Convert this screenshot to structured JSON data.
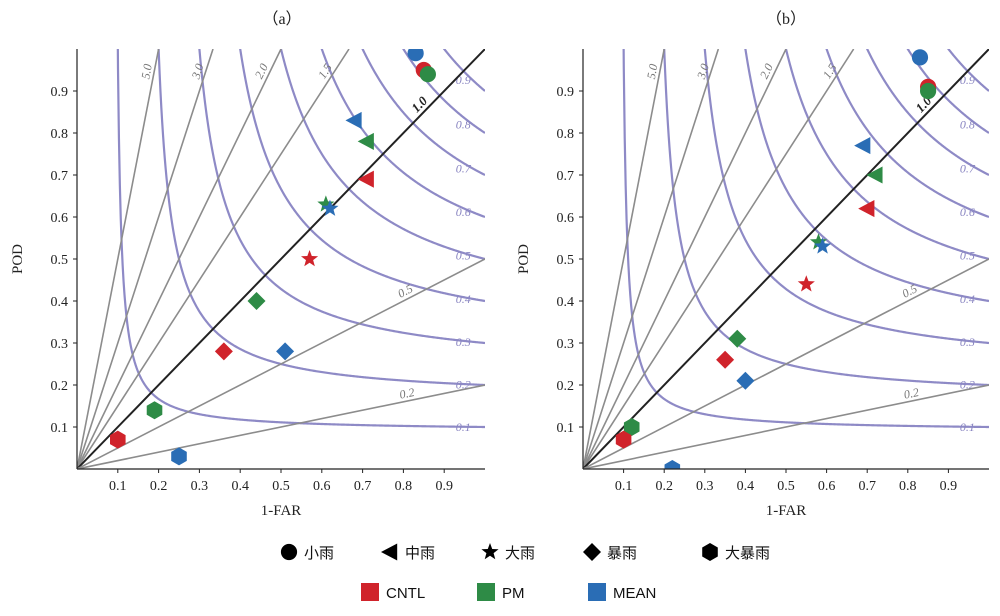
{
  "chart_data": [
    {
      "type": "scatter",
      "subtype": "performance-diagram",
      "title": "（a）",
      "xlabel": "1-FAR",
      "ylabel": "POD",
      "xlim": [
        0,
        1
      ],
      "ylim": [
        0,
        1
      ],
      "xticks": [
        "0.1",
        "0.2",
        "0.3",
        "0.4",
        "0.5",
        "0.6",
        "0.7",
        "0.8",
        "0.9"
      ],
      "yticks": [
        "0.1",
        "0.2",
        "0.3",
        "0.4",
        "0.5",
        "0.6",
        "0.7",
        "0.8",
        "0.9"
      ],
      "bias_lines": [
        {
          "value": 5.0,
          "label": "5.0"
        },
        {
          "value": 3.0,
          "label": "3.0"
        },
        {
          "value": 2.0,
          "label": "2.0"
        },
        {
          "value": 1.5,
          "label": "1.5"
        },
        {
          "value": 1.0,
          "label": "1.0"
        },
        {
          "value": 0.5,
          "label": "0.5"
        },
        {
          "value": 0.2,
          "label": "0.2"
        }
      ],
      "csi_curves": [
        {
          "value": 0.1,
          "label": "0.1"
        },
        {
          "value": 0.2,
          "label": "0.2"
        },
        {
          "value": 0.3,
          "label": "0.3"
        },
        {
          "value": 0.4,
          "label": "0.4"
        },
        {
          "value": 0.5,
          "label": "0.5"
        },
        {
          "value": 0.6,
          "label": "0.6"
        },
        {
          "value": 0.7,
          "label": "0.7"
        },
        {
          "value": 0.8,
          "label": "0.8"
        },
        {
          "value": 0.9,
          "label": "0.9"
        }
      ],
      "points": [
        {
          "model": "MEAN",
          "category": "小雨",
          "x": 0.83,
          "y": 0.99
        },
        {
          "model": "CNTL",
          "category": "小雨",
          "x": 0.85,
          "y": 0.95
        },
        {
          "model": "PM",
          "category": "小雨",
          "x": 0.86,
          "y": 0.94
        },
        {
          "model": "MEAN",
          "category": "中雨",
          "x": 0.68,
          "y": 0.83
        },
        {
          "model": "PM",
          "category": "中雨",
          "x": 0.71,
          "y": 0.78
        },
        {
          "model": "CNTL",
          "category": "中雨",
          "x": 0.71,
          "y": 0.69
        },
        {
          "model": "PM",
          "category": "大雨",
          "x": 0.61,
          "y": 0.63
        },
        {
          "model": "MEAN",
          "category": "大雨",
          "x": 0.62,
          "y": 0.62
        },
        {
          "model": "CNTL",
          "category": "大雨",
          "x": 0.57,
          "y": 0.5
        },
        {
          "model": "PM",
          "category": "暴雨",
          "x": 0.44,
          "y": 0.4
        },
        {
          "model": "CNTL",
          "category": "暴雨",
          "x": 0.36,
          "y": 0.28
        },
        {
          "model": "MEAN",
          "category": "暴雨",
          "x": 0.51,
          "y": 0.28
        },
        {
          "model": "PM",
          "category": "大暴雨",
          "x": 0.19,
          "y": 0.14
        },
        {
          "model": "CNTL",
          "category": "大暴雨",
          "x": 0.1,
          "y": 0.07
        },
        {
          "model": "MEAN",
          "category": "大暴雨",
          "x": 0.25,
          "y": 0.03
        }
      ]
    },
    {
      "type": "scatter",
      "subtype": "performance-diagram",
      "title": "（b）",
      "xlabel": "1-FAR",
      "ylabel": "POD",
      "xlim": [
        0,
        1
      ],
      "ylim": [
        0,
        1
      ],
      "xticks": [
        "0.1",
        "0.2",
        "0.3",
        "0.4",
        "0.5",
        "0.6",
        "0.7",
        "0.8",
        "0.9"
      ],
      "yticks": [
        "0.1",
        "0.2",
        "0.3",
        "0.4",
        "0.5",
        "0.6",
        "0.7",
        "0.8",
        "0.9"
      ],
      "bias_lines": [
        {
          "value": 5.0,
          "label": "5.0"
        },
        {
          "value": 3.0,
          "label": "3.0"
        },
        {
          "value": 2.0,
          "label": "2.0"
        },
        {
          "value": 1.5,
          "label": "1.5"
        },
        {
          "value": 1.0,
          "label": "1.0"
        },
        {
          "value": 0.5,
          "label": "0.5"
        },
        {
          "value": 0.2,
          "label": "0.2"
        }
      ],
      "csi_curves": [
        {
          "value": 0.1,
          "label": "0.1"
        },
        {
          "value": 0.2,
          "label": "0.2"
        },
        {
          "value": 0.3,
          "label": "0.3"
        },
        {
          "value": 0.4,
          "label": "0.4"
        },
        {
          "value": 0.5,
          "label": "0.5"
        },
        {
          "value": 0.6,
          "label": "0.6"
        },
        {
          "value": 0.7,
          "label": "0.7"
        },
        {
          "value": 0.8,
          "label": "0.8"
        },
        {
          "value": 0.9,
          "label": "0.9"
        }
      ],
      "points": [
        {
          "model": "MEAN",
          "category": "小雨",
          "x": 0.83,
          "y": 0.98
        },
        {
          "model": "CNTL",
          "category": "小雨",
          "x": 0.85,
          "y": 0.91
        },
        {
          "model": "PM",
          "category": "小雨",
          "x": 0.85,
          "y": 0.9
        },
        {
          "model": "MEAN",
          "category": "中雨",
          "x": 0.69,
          "y": 0.77
        },
        {
          "model": "PM",
          "category": "中雨",
          "x": 0.72,
          "y": 0.7
        },
        {
          "model": "CNTL",
          "category": "中雨",
          "x": 0.7,
          "y": 0.62
        },
        {
          "model": "PM",
          "category": "大雨",
          "x": 0.58,
          "y": 0.54
        },
        {
          "model": "MEAN",
          "category": "大雨",
          "x": 0.59,
          "y": 0.53
        },
        {
          "model": "CNTL",
          "category": "大雨",
          "x": 0.55,
          "y": 0.44
        },
        {
          "model": "PM",
          "category": "暴雨",
          "x": 0.38,
          "y": 0.31
        },
        {
          "model": "CNTL",
          "category": "暴雨",
          "x": 0.35,
          "y": 0.26
        },
        {
          "model": "MEAN",
          "category": "暴雨",
          "x": 0.4,
          "y": 0.21
        },
        {
          "model": "PM",
          "category": "大暴雨",
          "x": 0.12,
          "y": 0.1
        },
        {
          "model": "CNTL",
          "category": "大暴雨",
          "x": 0.1,
          "y": 0.07
        },
        {
          "model": "MEAN",
          "category": "大暴雨",
          "x": 0.22,
          "y": 0.0
        }
      ]
    }
  ],
  "legend": {
    "shapes": [
      {
        "category": "小雨",
        "shape": "circle",
        "label": "小雨"
      },
      {
        "category": "中雨",
        "shape": "triangle-left",
        "label": "中雨"
      },
      {
        "category": "大雨",
        "shape": "star",
        "label": "大雨"
      },
      {
        "category": "暴雨",
        "shape": "diamond",
        "label": "暴雨"
      },
      {
        "category": "大暴雨",
        "shape": "hexagon",
        "label": "大暴雨"
      }
    ],
    "models": [
      {
        "model": "CNTL",
        "label": "CNTL",
        "color": "#d0232b"
      },
      {
        "model": "PM",
        "label": "PM",
        "color": "#2e8b46"
      },
      {
        "model": "MEAN",
        "label": "MEAN",
        "color": "#2a6db5"
      }
    ]
  },
  "colors": {
    "bias_line": "#8c8c8c",
    "bias_one": "#222222",
    "csi_curve": "#8e8ac6",
    "axis": "#222222"
  }
}
